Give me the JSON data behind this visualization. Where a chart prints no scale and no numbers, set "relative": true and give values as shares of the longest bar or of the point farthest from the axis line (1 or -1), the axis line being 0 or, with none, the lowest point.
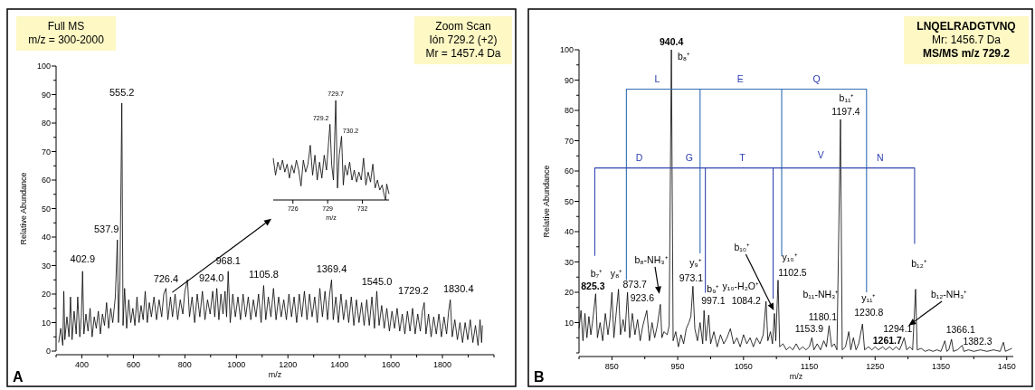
{
  "chart_data": [
    {
      "type": "line",
      "title": "A",
      "xlabel": "m/z",
      "ylabel": "Relative Abundance",
      "xlim": [
        300,
        2000
      ],
      "ylim": [
        0,
        100
      ],
      "xticks": [
        {
          "value": 300,
          "label": null
        },
        400,
        {
          "value": 500,
          "label": null
        },
        600,
        {
          "value": 700,
          "label": null
        },
        800,
        {
          "value": 900,
          "label": null
        },
        1000,
        {
          "value": 1100,
          "label": null
        },
        1200,
        {
          "value": 1300,
          "label": null
        },
        1400,
        {
          "value": 1500,
          "label": null
        },
        1600,
        {
          "value": 1700,
          "label": null
        },
        1800,
        {
          "value": 1900,
          "label": null
        },
        {
          "value": 2000,
          "label": null
        }
      ],
      "yticks": [
        0,
        {
          "value": 5,
          "label": null
        },
        10,
        {
          "value": 15,
          "label": null
        },
        20,
        {
          "value": 25,
          "label": null
        },
        30,
        {
          "value": 35,
          "label": null
        },
        40,
        {
          "value": 45,
          "label": null
        },
        50,
        {
          "value": 55,
          "label": null
        },
        60,
        {
          "value": 65,
          "label": null
        },
        70,
        {
          "value": 75,
          "label": null
        },
        80,
        {
          "value": 85,
          "label": null
        },
        90,
        {
          "value": 95,
          "label": null
        },
        100
      ],
      "series": [
        {
          "color": "#000000",
          "x": [
            310,
            318,
            326,
            330,
            334,
            342,
            350,
            356,
            362,
            370,
            378,
            384,
            392,
            398,
            402.9,
            408,
            416,
            424,
            432,
            440,
            448,
            456,
            464,
            472,
            480,
            488,
            496,
            504,
            512,
            520,
            530,
            537.9,
            542,
            548,
            555.2,
            560,
            566,
            574,
            582,
            590,
            598,
            606,
            614,
            622,
            630,
            638,
            646,
            654,
            662,
            670,
            680,
            690,
            700,
            710,
            718,
            726.4,
            734,
            744,
            752,
            762,
            772,
            782,
            792,
            800,
            810,
            818,
            828,
            838,
            848,
            858,
            868,
            878,
            888,
            898,
            908,
            916,
            924.0,
            932,
            940,
            948,
            956,
            962,
            968.1,
            976,
            986,
            996,
            1006,
            1016,
            1026,
            1036,
            1046,
            1056,
            1066,
            1076,
            1086,
            1096,
            1105.8,
            1114,
            1124,
            1134,
            1144,
            1154,
            1164,
            1174,
            1184,
            1194,
            1204,
            1214,
            1224,
            1234,
            1244,
            1254,
            1264,
            1274,
            1284,
            1294,
            1304,
            1314,
            1324,
            1334,
            1344,
            1354,
            1362,
            1369.4,
            1376,
            1386,
            1396,
            1406,
            1416,
            1426,
            1436,
            1446,
            1456,
            1466,
            1476,
            1486,
            1496,
            1506,
            1516,
            1526,
            1536,
            1545.0,
            1554,
            1564,
            1574,
            1584,
            1594,
            1604,
            1614,
            1624,
            1634,
            1644,
            1654,
            1664,
            1674,
            1684,
            1694,
            1704,
            1714,
            1722,
            1729.2,
            1736,
            1746,
            1756,
            1766,
            1776,
            1786,
            1796,
            1806,
            1816,
            1824,
            1830.4,
            1838,
            1848,
            1858,
            1868,
            1878,
            1888,
            1898,
            1908,
            1918,
            1928,
            1938,
            1946,
            1952,
            1955
          ],
          "values": [
            3,
            8,
            2,
            21,
            4,
            12,
            5,
            19,
            4,
            14,
            6,
            19,
            5,
            12,
            28,
            6,
            13,
            7,
            15,
            5,
            12,
            8,
            14,
            6,
            13,
            9,
            17,
            8,
            15,
            10,
            19,
            39,
            10,
            25,
            87,
            9,
            22,
            8,
            18,
            10,
            15,
            9,
            19,
            10,
            16,
            11,
            21,
            10,
            17,
            12,
            19,
            11,
            18,
            12,
            20,
            22,
            11,
            19,
            12,
            20,
            11,
            18,
            13,
            21,
            25,
            12,
            19,
            10,
            20,
            12,
            21,
            11,
            18,
            13,
            21,
            12,
            22,
            11,
            20,
            13,
            21,
            12,
            28,
            10,
            20,
            12,
            19,
            11,
            20,
            12,
            19,
            11,
            18,
            12,
            20,
            10,
            23,
            11,
            19,
            12,
            22,
            11,
            19,
            12,
            18,
            11,
            20,
            12,
            19,
            10,
            20,
            12,
            21,
            11,
            20,
            12,
            19,
            10,
            22,
            12,
            21,
            11,
            20,
            25,
            11,
            19,
            10,
            20,
            11,
            18,
            10,
            19,
            9,
            18,
            10,
            17,
            9,
            18,
            9,
            19,
            8,
            21,
            9,
            16,
            8,
            15,
            7,
            14,
            8,
            15,
            7,
            13,
            6,
            14,
            7,
            15,
            6,
            13,
            7,
            14,
            17,
            6,
            13,
            5,
            12,
            6,
            13,
            5,
            12,
            6,
            14,
            18,
            5,
            11,
            4,
            10,
            3,
            10,
            4,
            11,
            3,
            9,
            2,
            11,
            3,
            9
          ]
        }
      ],
      "annotations": [
        "Full MS\nm/z = 300-2000",
        "Zoom Scan\nIón 729.2 (+2)\nMr = 1457.4 Da",
        {
          "text": "555.2",
          "x": 555.2,
          "y": 88
        },
        {
          "text": "537.9",
          "x": 537.9,
          "y": 40
        },
        {
          "text": "402.9",
          "x": 402.9,
          "y": 29.5
        },
        {
          "text": "726.4",
          "x": 726.4,
          "y": 22.5
        },
        {
          "text": "924.0",
          "x": 924.0,
          "y": 22.5
        },
        {
          "text": "968.1",
          "x": 968.1,
          "y": 29
        },
        {
          "text": "1105.8",
          "x": 1105.8,
          "y": 24
        },
        {
          "text": "1369.4",
          "x": 1369.4,
          "y": 26
        },
        {
          "text": "1545.0",
          "x": 1545.0,
          "y": 21.5
        },
        {
          "text": "1729.2",
          "x": 1729.2,
          "y": 18.5
        },
        {
          "text": "1830.4",
          "x": 1830.4,
          "y": 19
        }
      ]
    },
    {
      "type": "line",
      "xlabel": "m/z",
      "relative": true,
      "tick_labels": "x",
      "xlim": [
        724.3,
        734.3
      ],
      "xticks": [
        726,
        729,
        732
      ],
      "series": [
        {
          "color": "#000000",
          "x": [
            724.3,
            724.5,
            724.7,
            724.9,
            725.1,
            725.3,
            725.5,
            725.7,
            725.9,
            726.1,
            726.3,
            726.5,
            726.7,
            726.9,
            727.1,
            727.3,
            727.5,
            727.7,
            727.9,
            728.1,
            728.3,
            728.5,
            728.7,
            728.9,
            729.2,
            729.35,
            729.5,
            729.7,
            729.85,
            730.0,
            730.2,
            730.35,
            730.5,
            730.7,
            730.9,
            731.1,
            731.3,
            731.5,
            731.7,
            731.9,
            732.1,
            732.3,
            732.5,
            732.7,
            732.9,
            733.1,
            733.3,
            733.5,
            733.7,
            733.9,
            734.0,
            734.1,
            734.3
          ],
          "values": [
            0.42,
            0.25,
            0.38,
            0.3,
            0.4,
            0.28,
            0.36,
            0.22,
            0.35,
            0.27,
            0.4,
            0.3,
            0.14,
            0.4,
            0.28,
            0.36,
            0.55,
            0.25,
            0.45,
            0.2,
            0.38,
            0.22,
            0.45,
            0.3,
            0.76,
            0.35,
            0.2,
            1,
            0.12,
            0.45,
            0.64,
            0.15,
            0.35,
            0.25,
            0.38,
            0.2,
            0.3,
            0.18,
            0.28,
            0.2,
            0.42,
            0.15,
            0.28,
            0.18,
            0.36,
            0.12,
            0.2,
            0.1,
            0.15,
            0.04,
            0,
            0.16,
            0.06
          ]
        }
      ],
      "annotations": [
        {
          "text": "729.2",
          "x": 729.2,
          "y": 0.76
        },
        {
          "text": "729.7",
          "x": 729.7,
          "y": 1
        },
        {
          "text": "730.2",
          "x": 730.2,
          "y": 0.64
        }
      ]
    },
    {
      "type": "line",
      "title": "B",
      "xlabel": "m/z",
      "ylabel": "Relative Abundance",
      "xlim": [
        800,
        1460
      ],
      "ylim": [
        0,
        100
      ],
      "xticks": [
        {
          "value": 800,
          "label": null
        },
        850,
        {
          "value": 900,
          "label": null
        },
        950,
        {
          "value": 1000,
          "label": null
        },
        1050,
        {
          "value": 1100,
          "label": null
        },
        1150,
        {
          "value": 1200,
          "label": null
        },
        1250,
        {
          "value": 1300,
          "label": null
        },
        1350,
        {
          "value": 1400,
          "label": null
        },
        1450
      ],
      "yticks": [
        {
          "value": 0,
          "label": null
        },
        {
          "value": 5,
          "label": null
        },
        10,
        {
          "value": 15,
          "label": null
        },
        20,
        {
          "value": 25,
          "label": null
        },
        30,
        {
          "value": 35,
          "label": null
        },
        40,
        {
          "value": 45,
          "label": null
        },
        50,
        {
          "value": 55,
          "label": null
        },
        60,
        {
          "value": 65,
          "label": null
        },
        70,
        {
          "value": 75,
          "label": null
        },
        80,
        {
          "value": 85,
          "label": null
        },
        90,
        {
          "value": 95,
          "label": null
        },
        100
      ],
      "series": [
        {
          "color": "#000000",
          "x": [
            800,
            803,
            806,
            809,
            812,
            815,
            818,
            821,
            825.3,
            828,
            832,
            836,
            840,
            844,
            847,
            850,
            853,
            856,
            860,
            863,
            867,
            870,
            873.7,
            877,
            881,
            885,
            889,
            893,
            897,
            903,
            907,
            911,
            915,
            919,
            923.6,
            926,
            929,
            934,
            937,
            940.4,
            943,
            947,
            951,
            955,
            959,
            963,
            967,
            970,
            973.1,
            976,
            980,
            984,
            988,
            990,
            993,
            997.1,
            1000,
            1005,
            1010,
            1015,
            1020,
            1025,
            1030,
            1035,
            1040,
            1045,
            1050,
            1055,
            1060,
            1065,
            1070,
            1075,
            1080,
            1084.2,
            1087,
            1091,
            1094,
            1097,
            1099,
            1102.5,
            1105,
            1110,
            1115,
            1120,
            1125,
            1130,
            1135,
            1140,
            1145,
            1150,
            1153.9,
            1157,
            1162,
            1167,
            1172,
            1176,
            1180.1,
            1184,
            1188,
            1192,
            1197.4,
            1200,
            1205,
            1210,
            1213,
            1217,
            1221,
            1225,
            1230.8,
            1234,
            1240,
            1245,
            1250,
            1255,
            1261.7,
            1266,
            1272,
            1277,
            1282,
            1287,
            1291,
            1294.1,
            1298,
            1303,
            1307,
            1311.5,
            1314,
            1320,
            1326,
            1332,
            1338,
            1344,
            1350,
            1356,
            1359,
            1362,
            1366.1,
            1369,
            1375,
            1382.3,
            1385,
            1392,
            1400,
            1410,
            1420,
            1430,
            1440,
            1445,
            1448,
            1453,
            1458
          ],
          "values": [
            8,
            14,
            4,
            13,
            5,
            12,
            6,
            11,
            19.5,
            5,
            10,
            4,
            13,
            6,
            11,
            20,
            5,
            12,
            21,
            6,
            11,
            7,
            20,
            5,
            13,
            6,
            11,
            4,
            9,
            14,
            4,
            10,
            5,
            9,
            16,
            5,
            7,
            6,
            9,
            100,
            4,
            7,
            2,
            6,
            3,
            8,
            10,
            12,
            22,
            8,
            4,
            10,
            3,
            14,
            4,
            12.5,
            3,
            7,
            2,
            6,
            3,
            5,
            8,
            3,
            5,
            2,
            6,
            3,
            5,
            2,
            5,
            3,
            6,
            17,
            4,
            7,
            3,
            13,
            4,
            24,
            2,
            3,
            1,
            2,
            1,
            3,
            1,
            2,
            1,
            2,
            5,
            1,
            3,
            1,
            4,
            2,
            9,
            2,
            3,
            1,
            77,
            1,
            2,
            7,
            1,
            5,
            1,
            3,
            9.5,
            1,
            2,
            1,
            2,
            1,
            2,
            1,
            2,
            1,
            2,
            1,
            3,
            5,
            1,
            2,
            1,
            21,
            1,
            1.5,
            0.5,
            1,
            0.5,
            1,
            0.5,
            4,
            0.5,
            1,
            4.5,
            0.5,
            1,
            2.5,
            0.5,
            1,
            0.5,
            1,
            0.5,
            1,
            0.5,
            3.5,
            0.5,
            1,
            1.5
          ]
        },
        {
          "color": "#2f6db3",
          "x": [
            872,
            872,
            984,
            984,
            984,
            1108,
            1108,
            1108,
            1237,
            1237
          ],
          "values": [
            24,
            87,
            87,
            33,
            87,
            87,
            32,
            87,
            87,
            20
          ]
        },
        {
          "color": "#3346b0",
          "x": [
            824,
            824,
            992,
            992,
            992,
            1095,
            1095,
            1095,
            1310,
            1310
          ],
          "values": [
            32,
            61,
            61,
            20,
            61,
            61,
            18,
            61,
            61,
            36
          ]
        }
      ],
      "annotations": [
        "LNQELRADGTVNQ\nMr: 1456.7 Da\nMS/MS m/z  729.2",
        {
          "text": "940.4",
          "x": 940.4,
          "y": 100
        },
        {
          "text": "b₈⁺",
          "x": 940.4,
          "y": 100
        },
        {
          "text": "L",
          "x": 919,
          "y": 87
        },
        {
          "text": "E",
          "x": 1045,
          "y": 87
        },
        {
          "text": "Q",
          "x": 1161,
          "y": 87
        },
        {
          "text": "b₁₁⁺",
          "x": 1197.4,
          "y": 77
        },
        {
          "text": "1197.4",
          "x": 1197.4,
          "y": 77
        },
        {
          "text": "D",
          "x": 891.5,
          "y": 61
        },
        {
          "text": "G",
          "x": 967.5,
          "y": 61
        },
        {
          "text": "T",
          "x": 1048,
          "y": 61
        },
        {
          "text": "V",
          "x": 1167.5,
          "y": 61
        },
        {
          "text": "N",
          "x": 1257.5,
          "y": 61
        },
        "b₈-NH₃⁺",
        {
          "text": "y₉⁺",
          "x": 973.1,
          "y": 22
        },
        "b₁₀⁺",
        {
          "text": "y₁₀⁺",
          "x": 1102.5,
          "y": 24
        },
        {
          "text": "b₁₂⁺",
          "x": 1311.5,
          "y": 21
        },
        {
          "text": "b₇⁺",
          "x": 825.3,
          "y": 19.5
        },
        {
          "text": "y₈⁺",
          "x": 873.7,
          "y": 20
        },
        {
          "text": "825.3",
          "x": 825.3,
          "y": 19.5
        },
        {
          "text": "873.7",
          "x": 873.7,
          "y": 20
        },
        {
          "text": "973.1",
          "x": 973.1,
          "y": 22
        },
        {
          "text": "1102.5",
          "x": 1102.5,
          "y": 24
        },
        {
          "text": "b₉⁺",
          "x": 997.1,
          "y": 12.5
        },
        {
          "text": "997.1",
          "x": 997.1,
          "y": 12.5
        },
        {
          "text": "y₁₀-H₂O⁺",
          "x": 1084.2,
          "y": 17
        },
        {
          "text": "1084.2",
          "x": 1084.2,
          "y": 17
        },
        {
          "text": "923.6",
          "x": 923.6,
          "y": 16
        },
        {
          "text": "b₁₁-NH₃⁺",
          "x": 1180.1,
          "y": 9
        },
        {
          "text": "y₁₁⁺",
          "x": 1230.8,
          "y": 9.5
        },
        {
          "text": "1230.8",
          "x": 1230.8,
          "y": 9.5
        },
        {
          "text": "1180.1",
          "x": 1180.1,
          "y": 9
        },
        {
          "text": "1153.9",
          "x": 1153.9,
          "y": 5
        },
        "b₁₂-NH₃⁺",
        {
          "text": "1294.1",
          "x": 1294.1,
          "y": 5
        },
        {
          "text": "1261.7",
          "x": 1261.7,
          "y": 2
        },
        {
          "text": "1366.1",
          "x": 1366.1,
          "y": 4.5
        },
        {
          "text": "1382.3",
          "x": 1382.3,
          "y": 2.5
        }
      ]
    }
  ]
}
